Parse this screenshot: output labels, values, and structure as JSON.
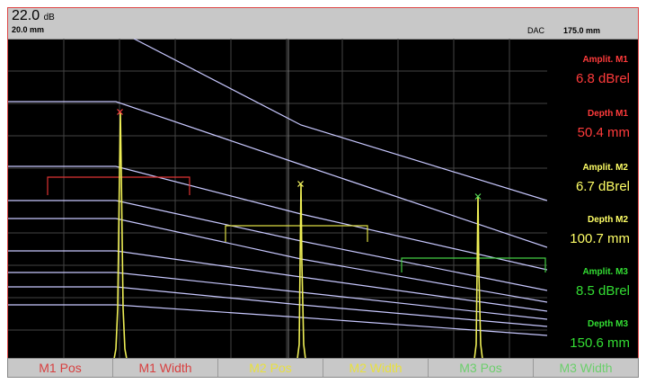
{
  "header": {
    "gain": "22.0",
    "gain_unit": "dB",
    "range": "20.0 mm",
    "dac_label": "DAC",
    "dac_value": "175.0 mm"
  },
  "readouts": {
    "m1": {
      "amp_label": "Amplit. M1",
      "amp_value": "6.8 dBrel",
      "depth_label": "Depth M1",
      "depth_value": "50.4 mm",
      "color": "#ff3b3b"
    },
    "m2": {
      "amp_label": "Amplit. M2",
      "amp_value": "6.7 dBrel",
      "depth_label": "Depth M2",
      "depth_value": "100.7 mm",
      "color": "#ffff66"
    },
    "m3": {
      "amp_label": "Amplit. M3",
      "amp_value": "8.5 dBrel",
      "depth_label": "Depth M3",
      "depth_value": "150.6 mm",
      "color": "#33dd33"
    }
  },
  "softkeys": [
    {
      "label": "M1 Pos",
      "color": "red"
    },
    {
      "label": "M1 Width",
      "color": "red"
    },
    {
      "label": "M2 Pos",
      "color": "yellow"
    },
    {
      "label": "M2 Width",
      "color": "yellow"
    },
    {
      "label": "M3 Pos",
      "color": "green"
    },
    {
      "label": "M3 Width",
      "color": "green"
    }
  ]
}
